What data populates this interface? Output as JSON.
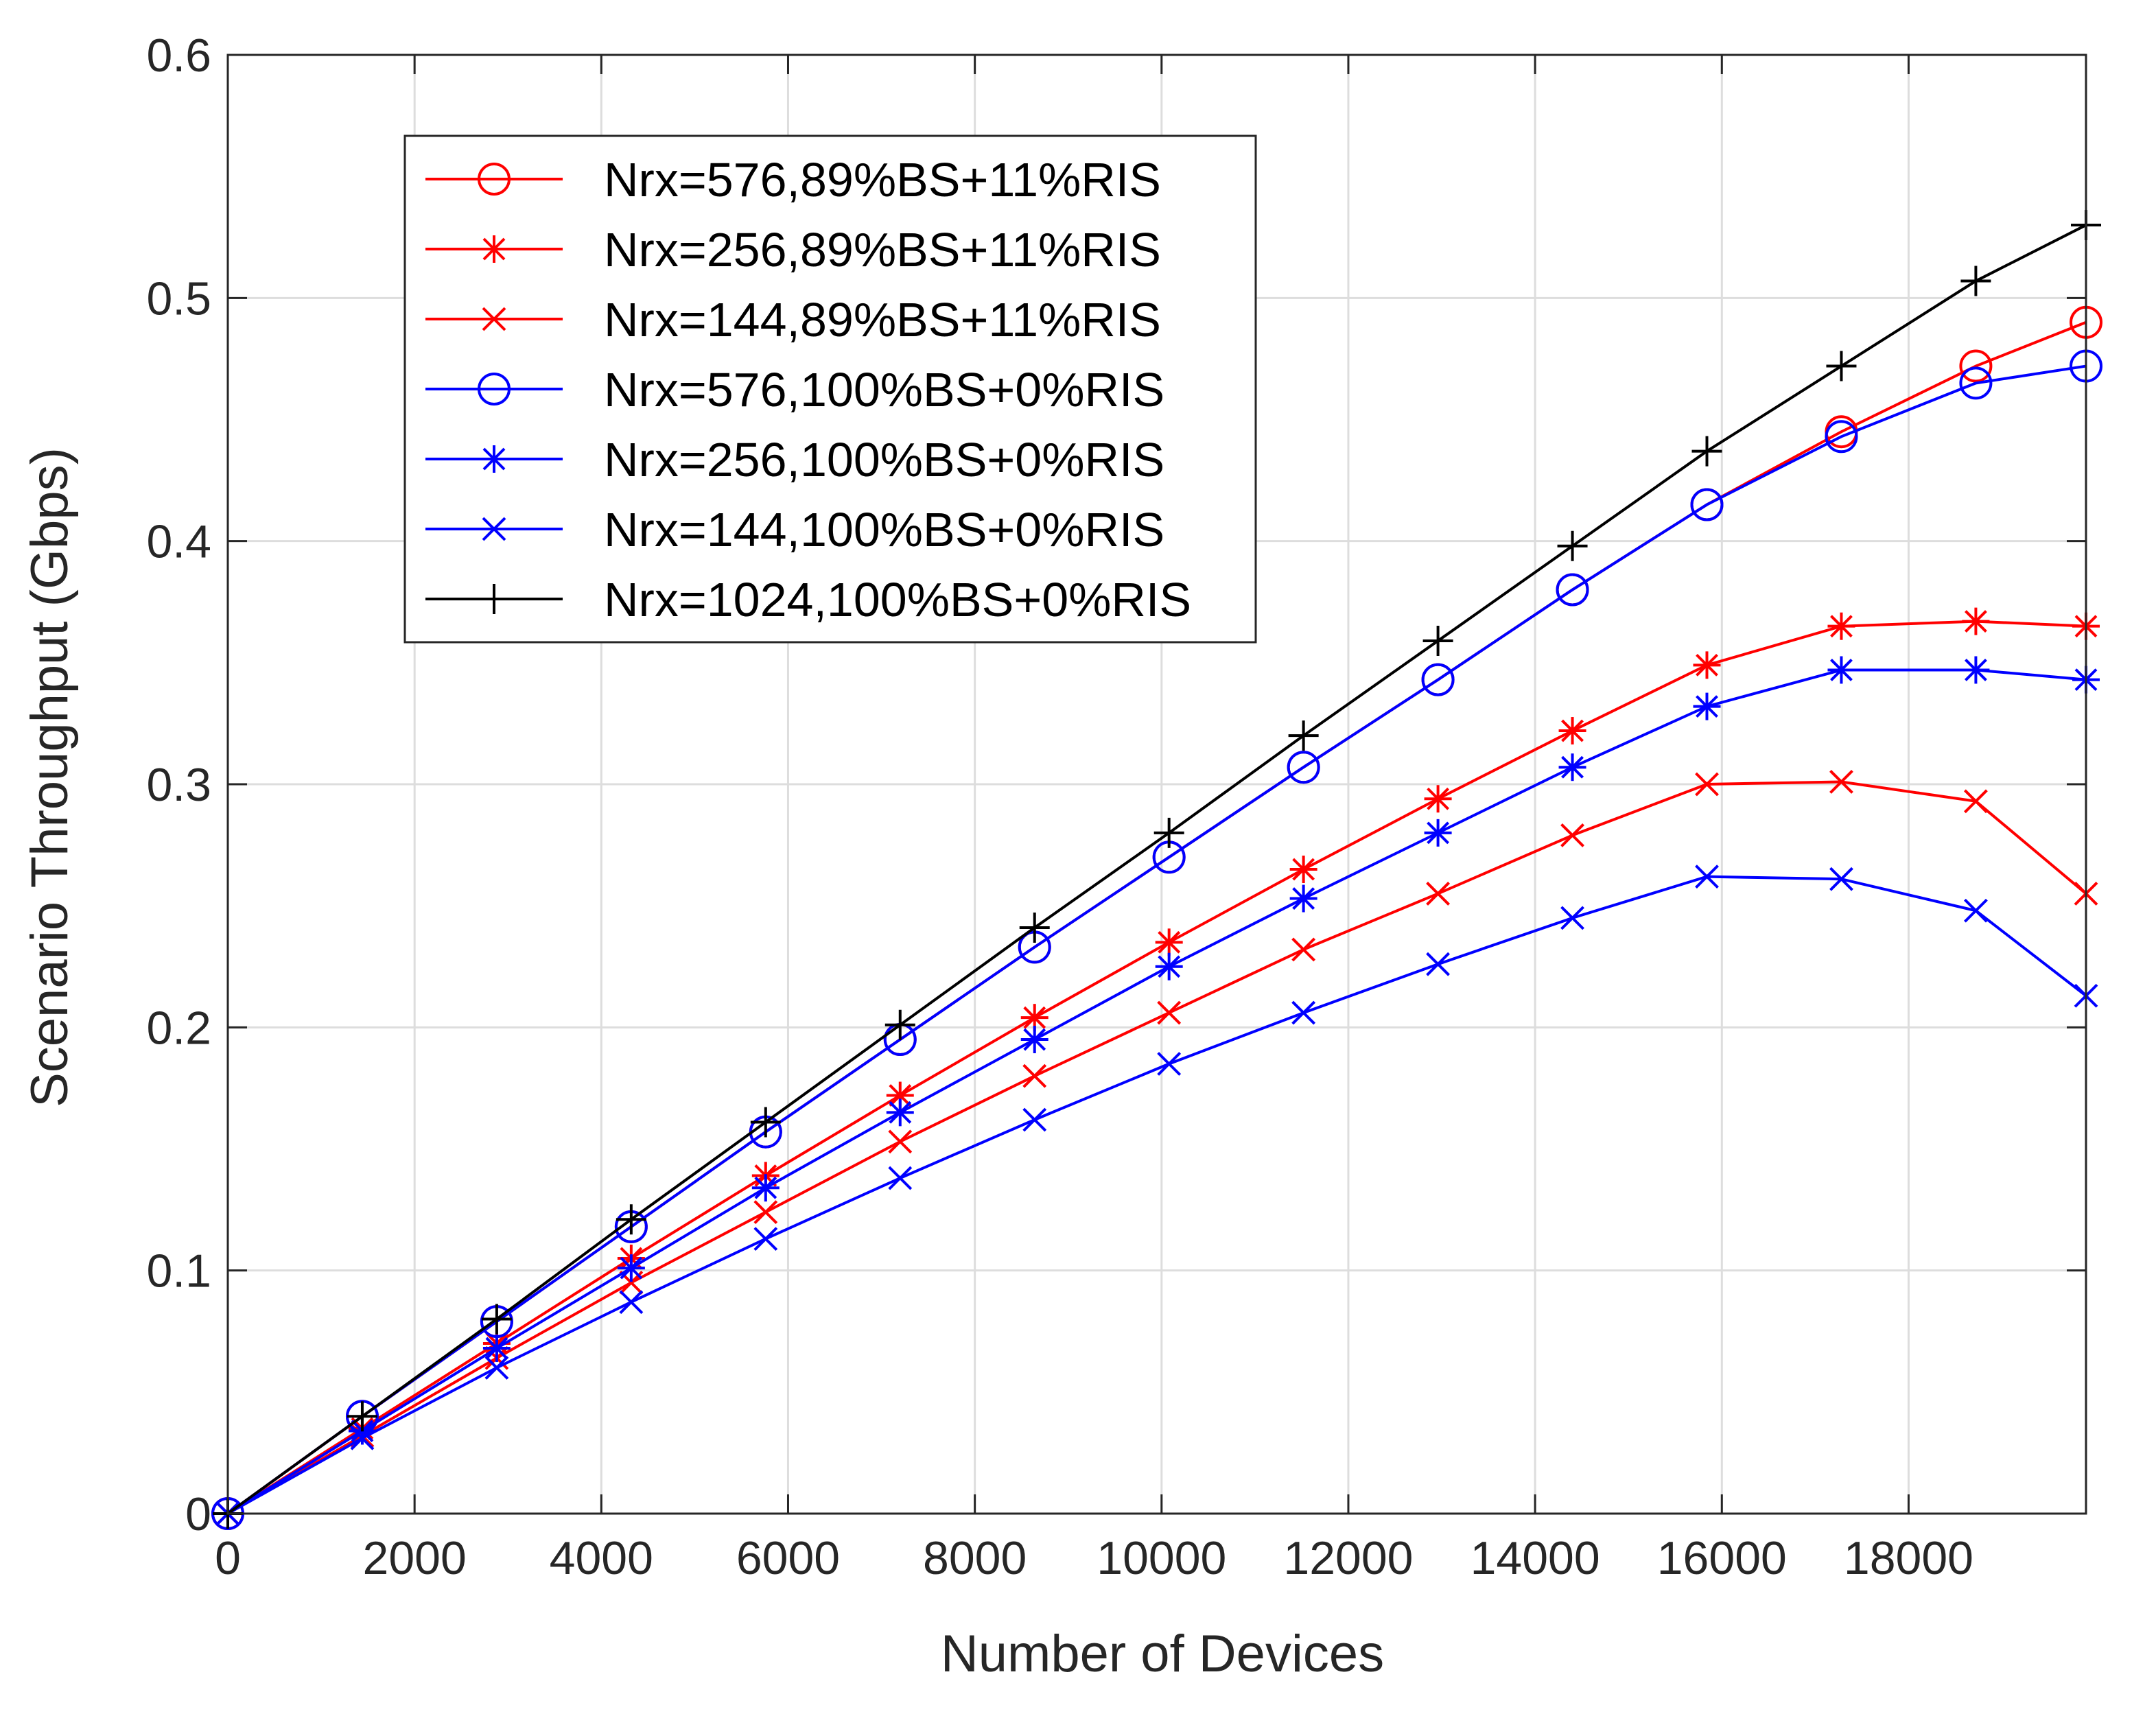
{
  "chart_data": {
    "type": "line",
    "title": "",
    "xlabel": "Number of Devices",
    "ylabel": "Scenario Throughput (Gbps)",
    "xlim": [
      0,
      19900
    ],
    "ylim": [
      0,
      0.6
    ],
    "grid": true,
    "legend_position": "top-left",
    "x_ticks": [
      0,
      2000,
      4000,
      6000,
      8000,
      10000,
      12000,
      14000,
      16000,
      18000
    ],
    "x_tick_labels": [
      "0",
      "2000",
      "4000",
      "6000",
      "8000",
      "10000",
      "12000",
      "14000",
      "16000",
      "18000"
    ],
    "y_ticks": [
      0,
      0.1,
      0.2,
      0.3,
      0.4,
      0.5,
      0.6
    ],
    "y_tick_labels": [
      "0",
      "0.1",
      "0.2",
      "0.3",
      "0.4",
      "0.5",
      "0.6"
    ],
    "x": [
      0,
      1440,
      2880,
      4320,
      5760,
      7200,
      8640,
      10080,
      11520,
      12960,
      14400,
      15840,
      17280,
      18720,
      19900
    ],
    "series": [
      {
        "name": "Nrx=576,89%BS+11%RIS",
        "color": "#ff0000",
        "marker": "circle",
        "values": [
          0,
          0.04,
          0.079,
          0.118,
          0.157,
          0.195,
          0.233,
          0.27,
          0.307,
          0.343,
          0.38,
          0.415,
          0.445,
          0.472,
          0.49
        ]
      },
      {
        "name": "Nrx=256,89%BS+11%RIS",
        "color": "#ff0000",
        "marker": "asterisk",
        "values": [
          0,
          0.035,
          0.07,
          0.105,
          0.139,
          0.172,
          0.204,
          0.235,
          0.265,
          0.294,
          0.322,
          0.349,
          0.365,
          0.367,
          0.365
        ]
      },
      {
        "name": "Nrx=144,89%BS+11%RIS",
        "color": "#ff0000",
        "marker": "x",
        "values": [
          0,
          0.032,
          0.064,
          0.095,
          0.124,
          0.153,
          0.18,
          0.206,
          0.232,
          0.255,
          0.279,
          0.3,
          0.301,
          0.293,
          0.255
        ]
      },
      {
        "name": "Nrx=576,100%BS+0%RIS",
        "color": "#0000ff",
        "marker": "circle",
        "values": [
          0,
          0.04,
          0.079,
          0.118,
          0.157,
          0.195,
          0.233,
          0.27,
          0.307,
          0.343,
          0.38,
          0.415,
          0.443,
          0.465,
          0.472
        ]
      },
      {
        "name": "Nrx=256,100%BS+0%RIS",
        "color": "#0000ff",
        "marker": "asterisk",
        "values": [
          0,
          0.034,
          0.068,
          0.101,
          0.134,
          0.165,
          0.195,
          0.225,
          0.253,
          0.28,
          0.307,
          0.332,
          0.347,
          0.347,
          0.343
        ]
      },
      {
        "name": "Nrx=144,100%BS+0%RIS",
        "color": "#0000ff",
        "marker": "x",
        "values": [
          0,
          0.031,
          0.06,
          0.087,
          0.113,
          0.138,
          0.162,
          0.185,
          0.206,
          0.226,
          0.245,
          0.262,
          0.261,
          0.248,
          0.213
        ]
      },
      {
        "name": "Nrx=1024,100%BS+0%RIS",
        "color": "#000000",
        "marker": "plus",
        "values": [
          0,
          0.04,
          0.08,
          0.121,
          0.161,
          0.201,
          0.241,
          0.28,
          0.32,
          0.359,
          0.398,
          0.437,
          0.472,
          0.507,
          0.53
        ]
      }
    ]
  }
}
